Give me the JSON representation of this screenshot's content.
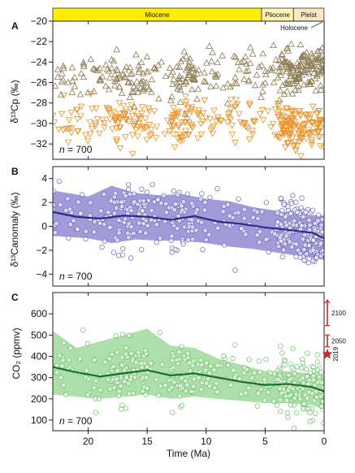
{
  "colors": {
    "brown": "#8c7a52",
    "orange": "#e8922a",
    "purple": "#8c82cf",
    "purple_line": "#2d2a8a",
    "green": "#9fd99b",
    "green_line": "#1f6b2e",
    "epoch_yellow": "#ffee00",
    "epoch_cream": "#f8e8c0",
    "red": "#d9232a"
  },
  "epochs": [
    {
      "name": "Miocene",
      "from": 23,
      "to": 5.3,
      "color": "#ffee00"
    },
    {
      "name": "Pliocene",
      "from": 5.3,
      "to": 2.6,
      "color": "#fdf5b0"
    },
    {
      "name": "Pleist",
      "from": 2.6,
      "to": 0.01,
      "color": "#f8e8c0"
    }
  ],
  "holocene_label": "Holocene",
  "xaxis": {
    "label": "Time (Ma)",
    "ticks": [
      20,
      15,
      10,
      5,
      0
    ],
    "range": [
      23,
      0
    ]
  },
  "chart_data": [
    {
      "panel": "A",
      "type": "scatter",
      "ylabel": "δ¹³Cp (‰)",
      "ylim": [
        -33.5,
        -20
      ],
      "yticks": [
        -20,
        -22,
        -24,
        -26,
        -28,
        -30,
        -32
      ],
      "n_label": "n = 700",
      "series": [
        {
          "marker": "triangle-up",
          "color": "#8c7a52",
          "mean_trend": [
            [
              23,
              -25.6
            ],
            [
              18,
              -25.3
            ],
            [
              15,
              -25.6
            ],
            [
              10,
              -25.2
            ],
            [
              5,
              -25.0
            ],
            [
              0,
              -24.5
            ]
          ]
        },
        {
          "marker": "triangle-down",
          "color": "#e8922a",
          "mean_trend": [
            [
              23,
              -29.9
            ],
            [
              18,
              -29.7
            ],
            [
              15,
              -29.9
            ],
            [
              10,
              -29.8
            ],
            [
              5,
              -30.2
            ],
            [
              0,
              -30.5
            ]
          ]
        }
      ]
    },
    {
      "panel": "B",
      "type": "scatter",
      "ylabel": "δ¹³Canomaly (‰)",
      "ylim": [
        -5,
        5
      ],
      "yticks": [
        4,
        2,
        0,
        -2,
        -4
      ],
      "n_label": "n = 700",
      "mean": [
        [
          23,
          1.2
        ],
        [
          21,
          0.8
        ],
        [
          19,
          0.65
        ],
        [
          17,
          0.9
        ],
        [
          15,
          0.8
        ],
        [
          13,
          0.55
        ],
        [
          11,
          0.85
        ],
        [
          9,
          0.4
        ],
        [
          7,
          0.2
        ],
        [
          5,
          -0.1
        ],
        [
          3,
          -0.3
        ],
        [
          1,
          -0.55
        ],
        [
          0,
          -1.0
        ]
      ],
      "band_upper": [
        [
          23,
          3.0
        ],
        [
          20,
          2.5
        ],
        [
          18,
          3.4
        ],
        [
          16,
          2.8
        ],
        [
          14,
          2.6
        ],
        [
          12,
          2.7
        ],
        [
          10,
          2.3
        ],
        [
          8,
          2.1
        ],
        [
          6,
          1.6
        ],
        [
          4,
          1.3
        ],
        [
          2,
          1.0
        ],
        [
          0,
          0.9
        ]
      ],
      "band_lower": [
        [
          23,
          -0.8
        ],
        [
          20,
          -1.0
        ],
        [
          18,
          -1.4
        ],
        [
          16,
          -1.1
        ],
        [
          14,
          -1.2
        ],
        [
          12,
          -1.2
        ],
        [
          10,
          -1.4
        ],
        [
          8,
          -1.7
        ],
        [
          6,
          -1.9
        ],
        [
          4,
          -2.2
        ],
        [
          2,
          -2.5
        ],
        [
          0,
          -2.8
        ]
      ]
    },
    {
      "panel": "C",
      "type": "scatter",
      "ylabel": "CO₂ (ppmv)",
      "ylim": [
        50,
        700
      ],
      "yticks": [
        600,
        500,
        400,
        300,
        200,
        100
      ],
      "n_label": "n = 700",
      "mean": [
        [
          23,
          350
        ],
        [
          21,
          325
        ],
        [
          19,
          305
        ],
        [
          17,
          320
        ],
        [
          15,
          335
        ],
        [
          13,
          310
        ],
        [
          11,
          320
        ],
        [
          9,
          300
        ],
        [
          7,
          280
        ],
        [
          5,
          265
        ],
        [
          3,
          270
        ],
        [
          1,
          255
        ],
        [
          0,
          235
        ]
      ],
      "band_upper": [
        [
          23,
          520
        ],
        [
          21,
          440
        ],
        [
          19,
          470
        ],
        [
          17,
          500
        ],
        [
          15,
          530
        ],
        [
          13,
          450
        ],
        [
          11,
          440
        ],
        [
          9,
          390
        ],
        [
          7,
          360
        ],
        [
          5,
          330
        ],
        [
          3,
          330
        ],
        [
          1,
          320
        ],
        [
          0,
          310
        ]
      ],
      "band_lower": [
        [
          23,
          220
        ],
        [
          21,
          210
        ],
        [
          19,
          200
        ],
        [
          17,
          210
        ],
        [
          15,
          220
        ],
        [
          13,
          200
        ],
        [
          11,
          210
        ],
        [
          9,
          200
        ],
        [
          7,
          190
        ],
        [
          5,
          180
        ],
        [
          3,
          180
        ],
        [
          1,
          170
        ],
        [
          0,
          150
        ]
      ],
      "projections": [
        {
          "label": "2100",
          "from": 545,
          "to": 665
        },
        {
          "label": "2050",
          "from": 445,
          "to": 500
        },
        {
          "label": "2019",
          "value": 410,
          "marker": "star"
        }
      ]
    }
  ]
}
